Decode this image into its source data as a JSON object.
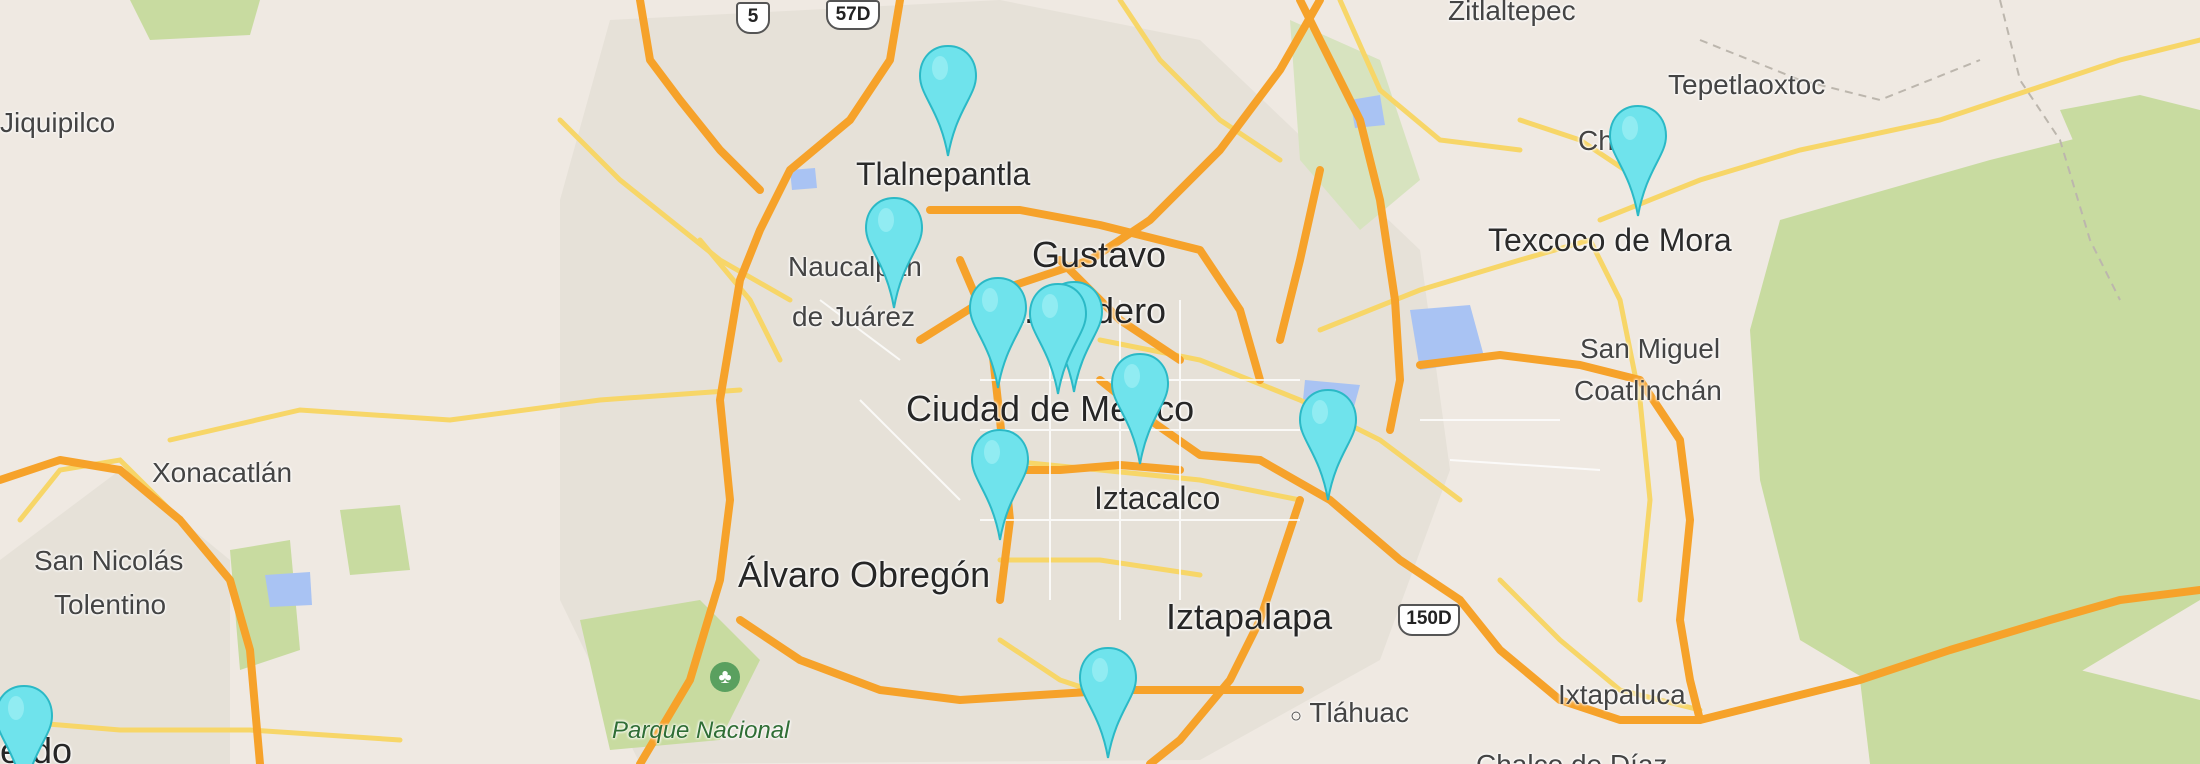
{
  "map": {
    "labels": {
      "zumpango_partial": "",
      "zitlaltepec": "Zitlaltepec",
      "jiquipilco": "Jiquipilco",
      "tepetlaoxtoc": "Tepetlaoxtoc",
      "chiconcuac": "Chi    la",
      "tlalnepantla": "Tlalnepantla",
      "texcoco": "Texcoco de Mora",
      "naucalpan_1": "Naucalpan",
      "naucalpan_2": "de Juárez",
      "gustavo_1": "Gustavo",
      "gustavo_2": "A. Madero",
      "san_miguel_1": "San Miguel",
      "san_miguel_2": "Coatlinchán",
      "cdmx": "Ciudad de México",
      "xonacatlan": "Xonacatlán",
      "iztacalco": "Iztacalco",
      "san_nicolas_1": "San Nicolás",
      "san_nicolas_2": "Tolentino",
      "alvaro": "Álvaro Obregón",
      "iztapalapa": "Iztapalapa",
      "tlahuac": "Tláhuac",
      "ixtapaluca": "Ixtapaluca",
      "parque": "Parque Nacional",
      "lerdo_partial": "erdo",
      "chalco_partial": "Chalco de Díaz"
    },
    "shields": {
      "route_5": "5",
      "route_57d": "57D",
      "route_150d": "150D"
    },
    "colors": {
      "land": "#efe9e2",
      "urban": "#e6e1d8",
      "park": "#c8dba0",
      "water": "#a9c3f3",
      "highway": "#f6a22a",
      "arterial": "#f7d668",
      "marker": "#6fe3ec"
    },
    "markers": [
      {
        "name": "marker-tlalnepantla"
      },
      {
        "name": "marker-naucalpan"
      },
      {
        "name": "marker-chiconcuac"
      },
      {
        "name": "marker-azcapotzalco"
      },
      {
        "name": "marker-gustavo-1"
      },
      {
        "name": "marker-gustavo-2"
      },
      {
        "name": "marker-cdmx-center"
      },
      {
        "name": "marker-east"
      },
      {
        "name": "marker-west-center"
      },
      {
        "name": "marker-coyoacan"
      },
      {
        "name": "marker-lerdo"
      }
    ]
  }
}
